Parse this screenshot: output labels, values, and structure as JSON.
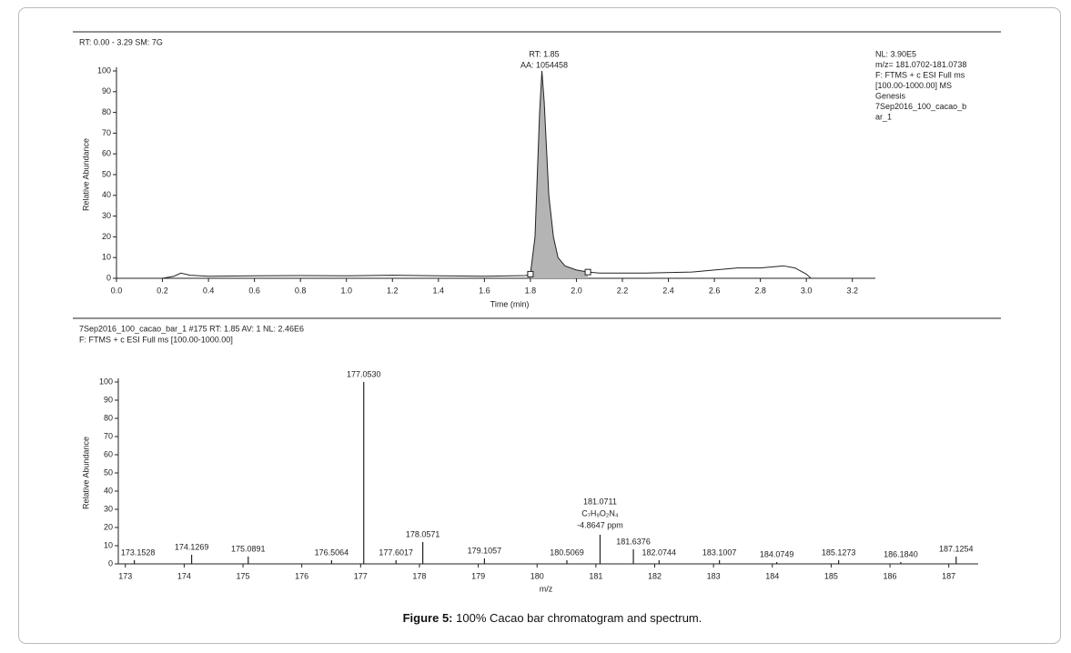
{
  "chart_data": [
    {
      "type": "line",
      "info": "RT: 0.00 - 3.29  SM: 7G",
      "notes": [
        "NL: 3.90E5",
        "m/z= 181.0702-181.0738",
        "F: FTMS + c ESI Full ms",
        "[100.00-1000.00]  MS",
        "Genesis",
        "7Sep2016_100_cacao_b",
        "ar_1"
      ],
      "peak_annotation": [
        "RT: 1.85",
        "AA: 1054458"
      ],
      "x_label": "Time (min)",
      "y_label": "Relative Abundance",
      "x": [
        0,
        0.2,
        0.25,
        0.28,
        0.32,
        0.4,
        0.6,
        0.8,
        1.0,
        1.2,
        1.4,
        1.6,
        1.78,
        1.8,
        1.82,
        1.84,
        1.85,
        1.86,
        1.88,
        1.9,
        1.92,
        1.95,
        2.0,
        2.05,
        2.1,
        2.3,
        2.5,
        2.6,
        2.7,
        2.8,
        2.9,
        2.95,
        3.0,
        3.02,
        3.3
      ],
      "values": [
        0,
        0,
        1,
        2.5,
        1.5,
        1,
        1.2,
        1.3,
        1.2,
        1.5,
        1.2,
        1,
        1.3,
        2,
        20,
        80,
        100,
        85,
        40,
        20,
        10,
        6,
        4,
        3,
        2.5,
        2.5,
        3,
        4,
        5,
        5,
        6,
        5,
        2,
        0,
        0
      ],
      "color": "#222222",
      "fill_color": "#b4b4b4",
      "integration_range": [
        1.8,
        2.05
      ],
      "xlim": [
        0,
        3.3
      ],
      "ylim": [
        0,
        100
      ],
      "xticks": [
        {
          "value": 0,
          "label": "0.0"
        },
        {
          "value": 0.2,
          "label": "0.2"
        },
        {
          "value": 0.4,
          "label": "0.4"
        },
        {
          "value": 0.6,
          "label": "0.6"
        },
        {
          "value": 0.8,
          "label": "0.8"
        },
        {
          "value": 1,
          "label": "1.0"
        },
        {
          "value": 1.2,
          "label": "1.2"
        },
        {
          "value": 1.4,
          "label": "1.4"
        },
        {
          "value": 1.6,
          "label": "1.6"
        },
        {
          "value": 1.8,
          "label": "1.8"
        },
        {
          "value": 2,
          "label": "2.0"
        },
        {
          "value": 2.2,
          "label": "2.2"
        },
        {
          "value": 2.4,
          "label": "2.4"
        },
        {
          "value": 2.6,
          "label": "2.6"
        },
        {
          "value": 2.8,
          "label": "2.8"
        },
        {
          "value": 3,
          "label": "3.0"
        },
        {
          "value": 3.2,
          "label": "3.2"
        }
      ],
      "yticks": [
        0,
        10,
        20,
        30,
        40,
        50,
        60,
        70,
        80,
        90,
        100
      ]
    },
    {
      "type": "stem",
      "info": [
        "7Sep2016_100_cacao_bar_1 #175  RT: 1.85  AV: 1  NL: 2.46E6",
        "F: FTMS + c ESI Full ms [100.00-1000.00]"
      ],
      "x_label": "m/z",
      "y_label": "Relative Abundance",
      "x": [
        173.1528,
        174.1269,
        175.0891,
        176.5064,
        177.053,
        177.6017,
        178.0571,
        179.1057,
        180.5069,
        181.0711,
        181.6376,
        182.0744,
        183.1007,
        184.0749,
        185.1273,
        186.184,
        187.1254
      ],
      "x_labels": [
        "173.1528",
        "174.1269",
        "175.0891",
        "176.5064",
        "177.0530",
        "177.6017",
        "178.0571",
        "179.1057",
        "180.5069",
        "181.0711",
        "181.6376",
        "182.0744",
        "183.1007",
        "184.0749",
        "185.1273",
        "186.1840",
        "187.1254"
      ],
      "values": [
        2,
        5,
        4,
        2,
        100,
        2,
        12,
        3,
        2,
        16,
        8,
        2,
        2,
        1,
        2,
        1,
        4
      ],
      "peak_annotation": [
        "C₇H₉O₂N₄",
        "-4.8647 ppm"
      ],
      "color": "#222222",
      "xlim": [
        172.88,
        187.5
      ],
      "ylim": [
        0,
        100
      ],
      "xticks": [
        173,
        174,
        175,
        176,
        177,
        178,
        179,
        180,
        181,
        182,
        183,
        184,
        185,
        186,
        187
      ],
      "yticks": [
        0,
        10,
        20,
        30,
        40,
        50,
        60,
        70,
        80,
        90,
        100
      ]
    }
  ],
  "caption": {
    "label": "Figure 5:",
    "text": " 100% Cacao bar chromatogram and spectrum."
  }
}
